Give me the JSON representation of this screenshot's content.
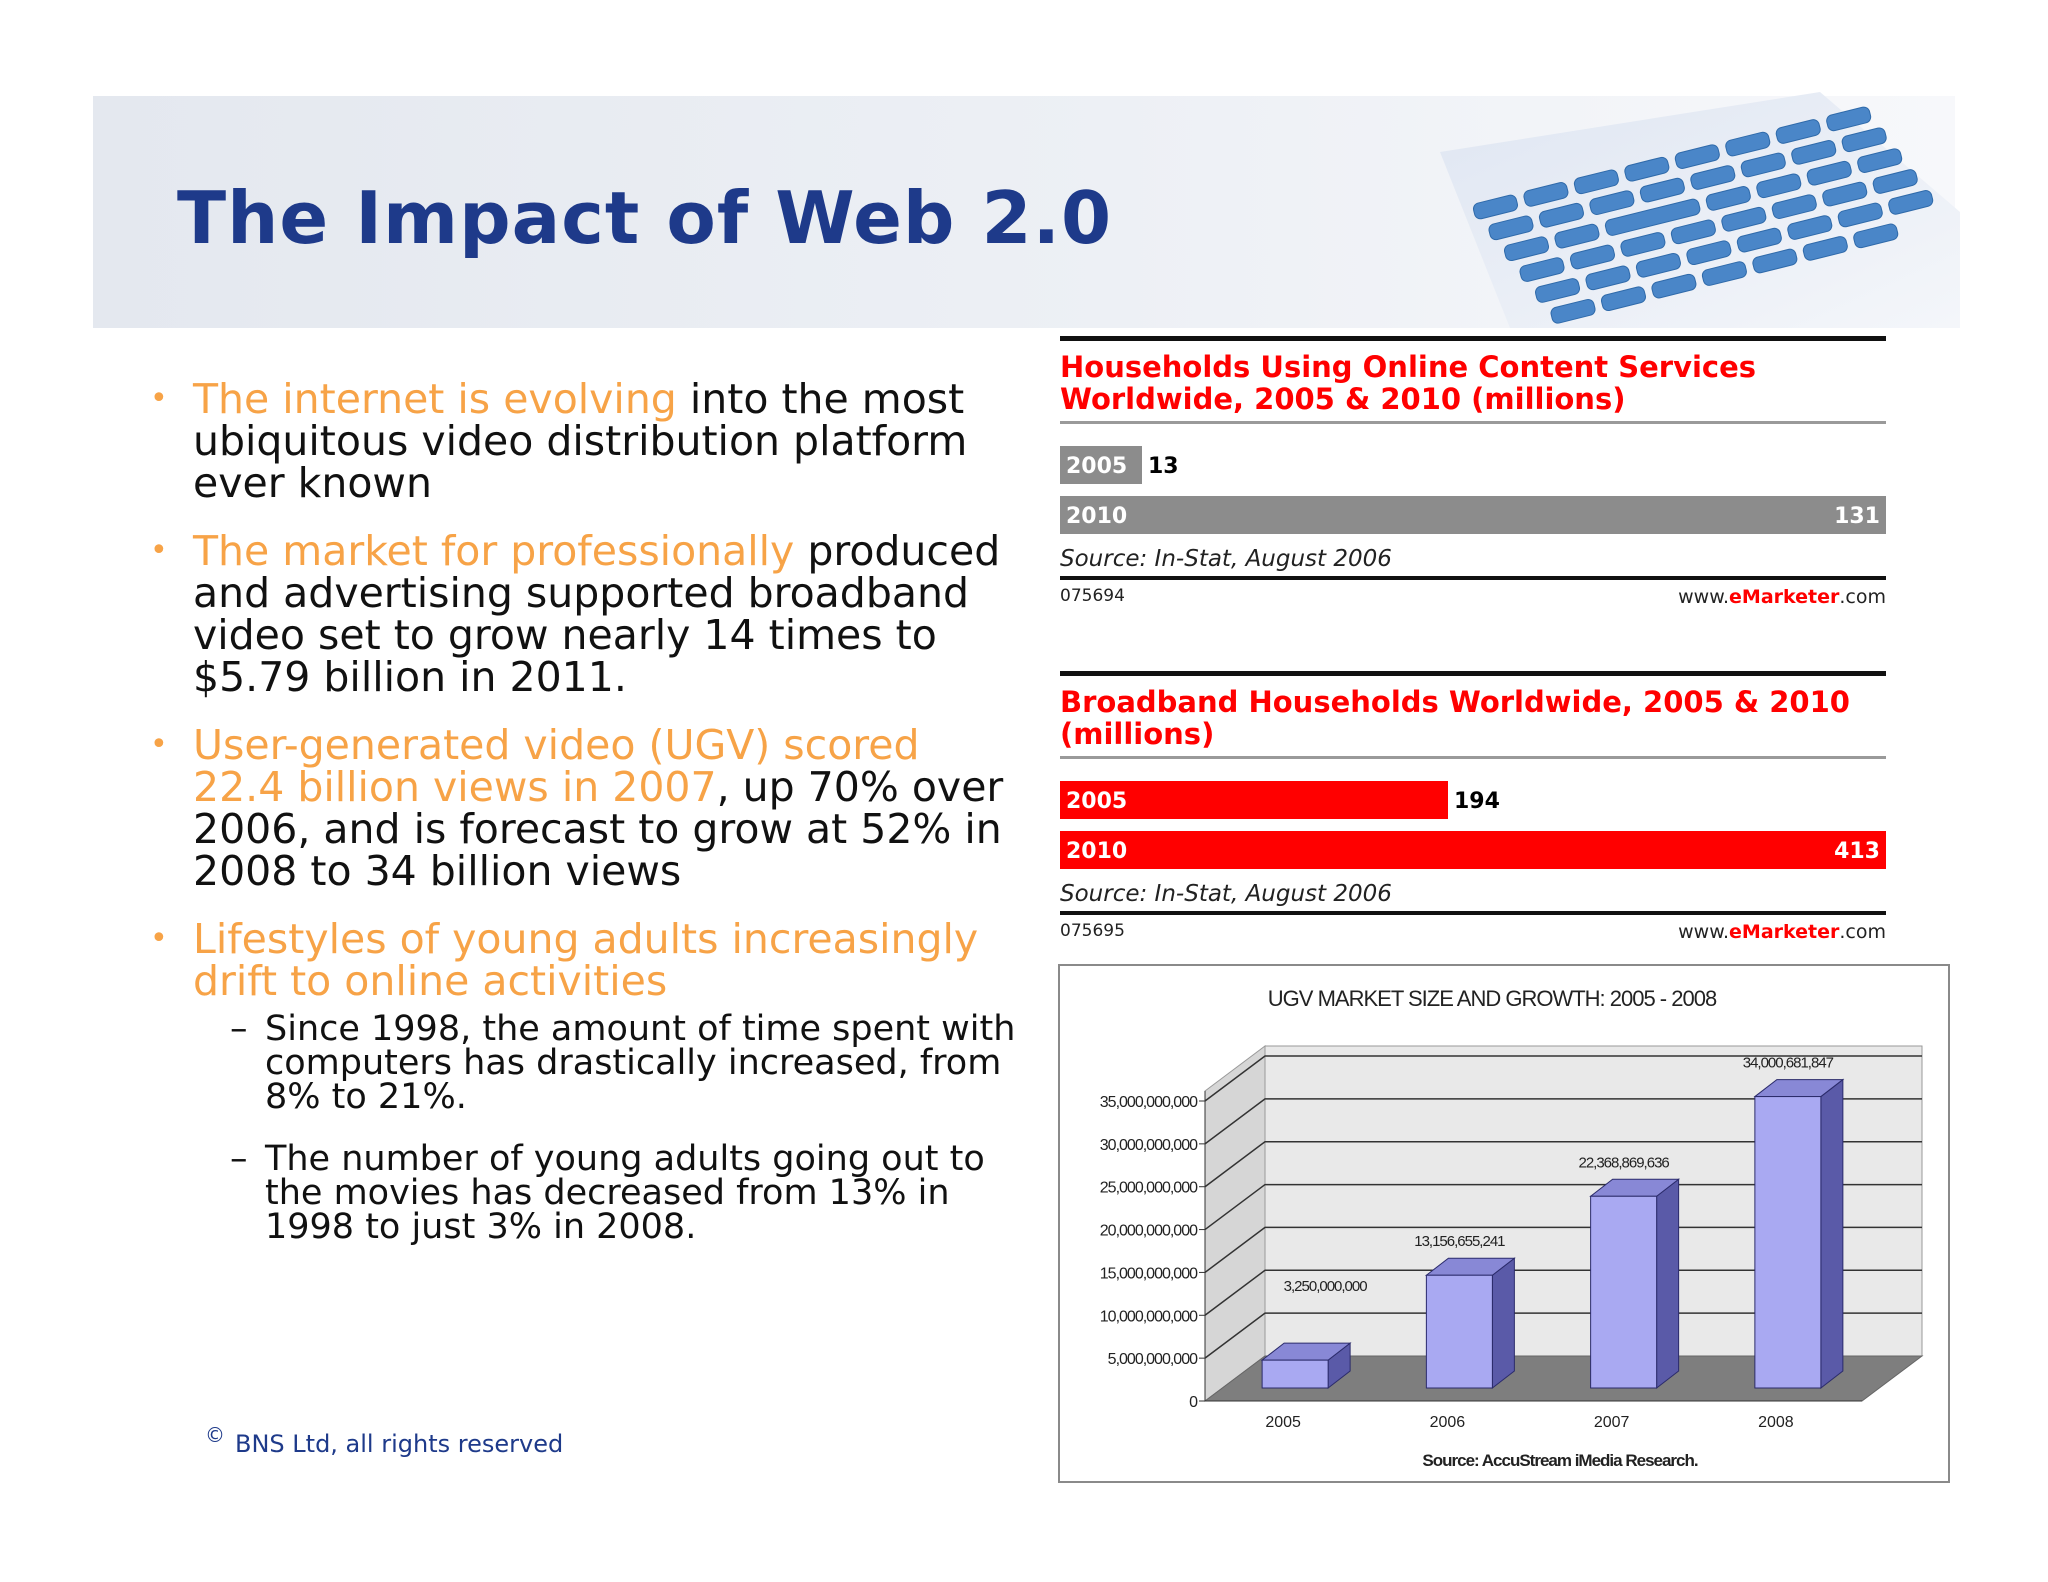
{
  "slide": {
    "title": "The Impact of Web 2.0",
    "footer_symbol": "©",
    "footer_text": "BNS Ltd, all rights reserved"
  },
  "bullets": [
    {
      "marker": "•",
      "highlight": "The internet is evolving",
      "rest": " into the most ubiquitous video distribution platform ever known"
    },
    {
      "marker": "•",
      "highlight": "The market for professionally",
      "rest": " produced and advertising supported broadband video set to grow nearly 14 times to $5.79 billion in 2011."
    },
    {
      "marker": "•",
      "highlight": "User-generated video (UGV) scored 22.4 billion views in 2007",
      "rest": ", up 70% over 2006, and is forecast to grow at 52% in 2008 to 34 billion views"
    },
    {
      "marker": "•",
      "highlight": "Lifestyles of young adults increasingly drift to online activities",
      "rest": ""
    }
  ],
  "subbullets": [
    {
      "marker": "–",
      "text": "Since 1998, the amount of time spent with computers has drastically increased, from 8% to 21%."
    },
    {
      "marker": "–",
      "text": "The number of young adults going out to the movies has decreased from 13% in 1998 to just 3% in 2008."
    }
  ],
  "chart_data": [
    {
      "type": "bar",
      "orientation": "horizontal",
      "title": "Households Using Online Content Services Worldwide, 2005 & 2010 (millions)",
      "categories": [
        "2005",
        "2010"
      ],
      "values": [
        13,
        131
      ],
      "source": "Source: In-Stat, August 2006",
      "id": "075694",
      "site_prefix": "www.",
      "site_brand": "eMarketer",
      "site_suffix": ".com",
      "color": "#8c8c8c"
    },
    {
      "type": "bar",
      "orientation": "horizontal",
      "title": "Broadband Households Worldwide, 2005 & 2010 (millions)",
      "categories": [
        "2005",
        "2010"
      ],
      "values": [
        194,
        413
      ],
      "source": "Source: In-Stat, August 2006",
      "id": "075695",
      "site_prefix": "www.",
      "site_brand": "eMarketer",
      "site_suffix": ".com",
      "color": "#ff0000"
    },
    {
      "type": "bar",
      "title": "UGV MARKET SIZE AND GROWTH: 2005 - 2008",
      "categories": [
        "2005",
        "2006",
        "2007",
        "2008"
      ],
      "values": [
        3250000000,
        13156655241,
        22368869636,
        34000681847
      ],
      "value_labels": [
        "3,250,000,000",
        "13,156,655,241",
        "22,368,869,636",
        "34,000,681,847"
      ],
      "yticks": [
        "0",
        "5,000,000,000",
        "10,000,000,000",
        "15,000,000,000",
        "20,000,000,000",
        "25,000,000,000",
        "30,000,000,000",
        "35,000,000,000"
      ],
      "ylim": [
        0,
        35000000000
      ],
      "source": "Source: AccuStream iMedia Research.",
      "grid": true,
      "color": "#a9a9f2"
    }
  ]
}
